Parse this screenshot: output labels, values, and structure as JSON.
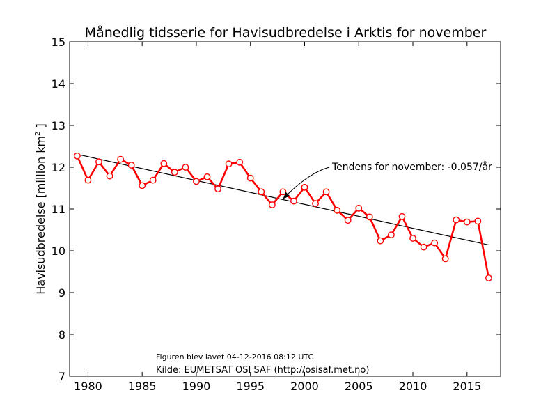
{
  "chart_data": {
    "type": "line",
    "title": "Månedlig tidsserie for Havisudbredelse i Arktis for november",
    "ylabel_main": "Havisudbredelse [million km",
    "ylabel_sup": "2",
    "ylabel_end": " ]",
    "xlabel": "",
    "xlim": [
      1978.3,
      2018.1
    ],
    "ylim": [
      7,
      15
    ],
    "xticks": [
      1980,
      1985,
      1990,
      1995,
      2000,
      2005,
      2010,
      2015
    ],
    "yticks": [
      7,
      8,
      9,
      10,
      11,
      12,
      13,
      14,
      15
    ],
    "grid": false,
    "x": [
      1979,
      1980,
      1981,
      1982,
      1983,
      1984,
      1985,
      1986,
      1987,
      1988,
      1989,
      1990,
      1991,
      1992,
      1993,
      1994,
      1995,
      1996,
      1997,
      1998,
      1999,
      2000,
      2001,
      2002,
      2003,
      2004,
      2005,
      2006,
      2007,
      2008,
      2009,
      2010,
      2011,
      2012,
      2013,
      2014,
      2015,
      2016,
      2017
    ],
    "series": [
      {
        "color": "#ff0000",
        "values": [
          12.27,
          11.69,
          12.13,
          11.79,
          12.19,
          12.05,
          11.56,
          11.69,
          12.09,
          11.88,
          12.0,
          11.66,
          11.77,
          11.48,
          12.08,
          12.12,
          11.74,
          11.41,
          11.1,
          11.41,
          11.19,
          11.52,
          11.13,
          11.41,
          10.97,
          10.73,
          11.02,
          10.81,
          10.24,
          10.38,
          10.82,
          10.3,
          10.09,
          10.19,
          9.81,
          10.74,
          10.69,
          10.71,
          9.35
        ]
      }
    ],
    "trend": {
      "color": "#000000",
      "x": [
        1979,
        2017
      ],
      "values": [
        12.31,
        10.14
      ]
    },
    "annotation": {
      "text": "Tendens for november: -0.057/år",
      "arrow_to": [
        1998,
        11.24
      ]
    },
    "notes": {
      "created": "Figuren blev lavet 04-12-2016 08:12 UTC",
      "source": "Kilde: EUMETSAT OSI SAF (http://osisaf.met.no)"
    }
  }
}
